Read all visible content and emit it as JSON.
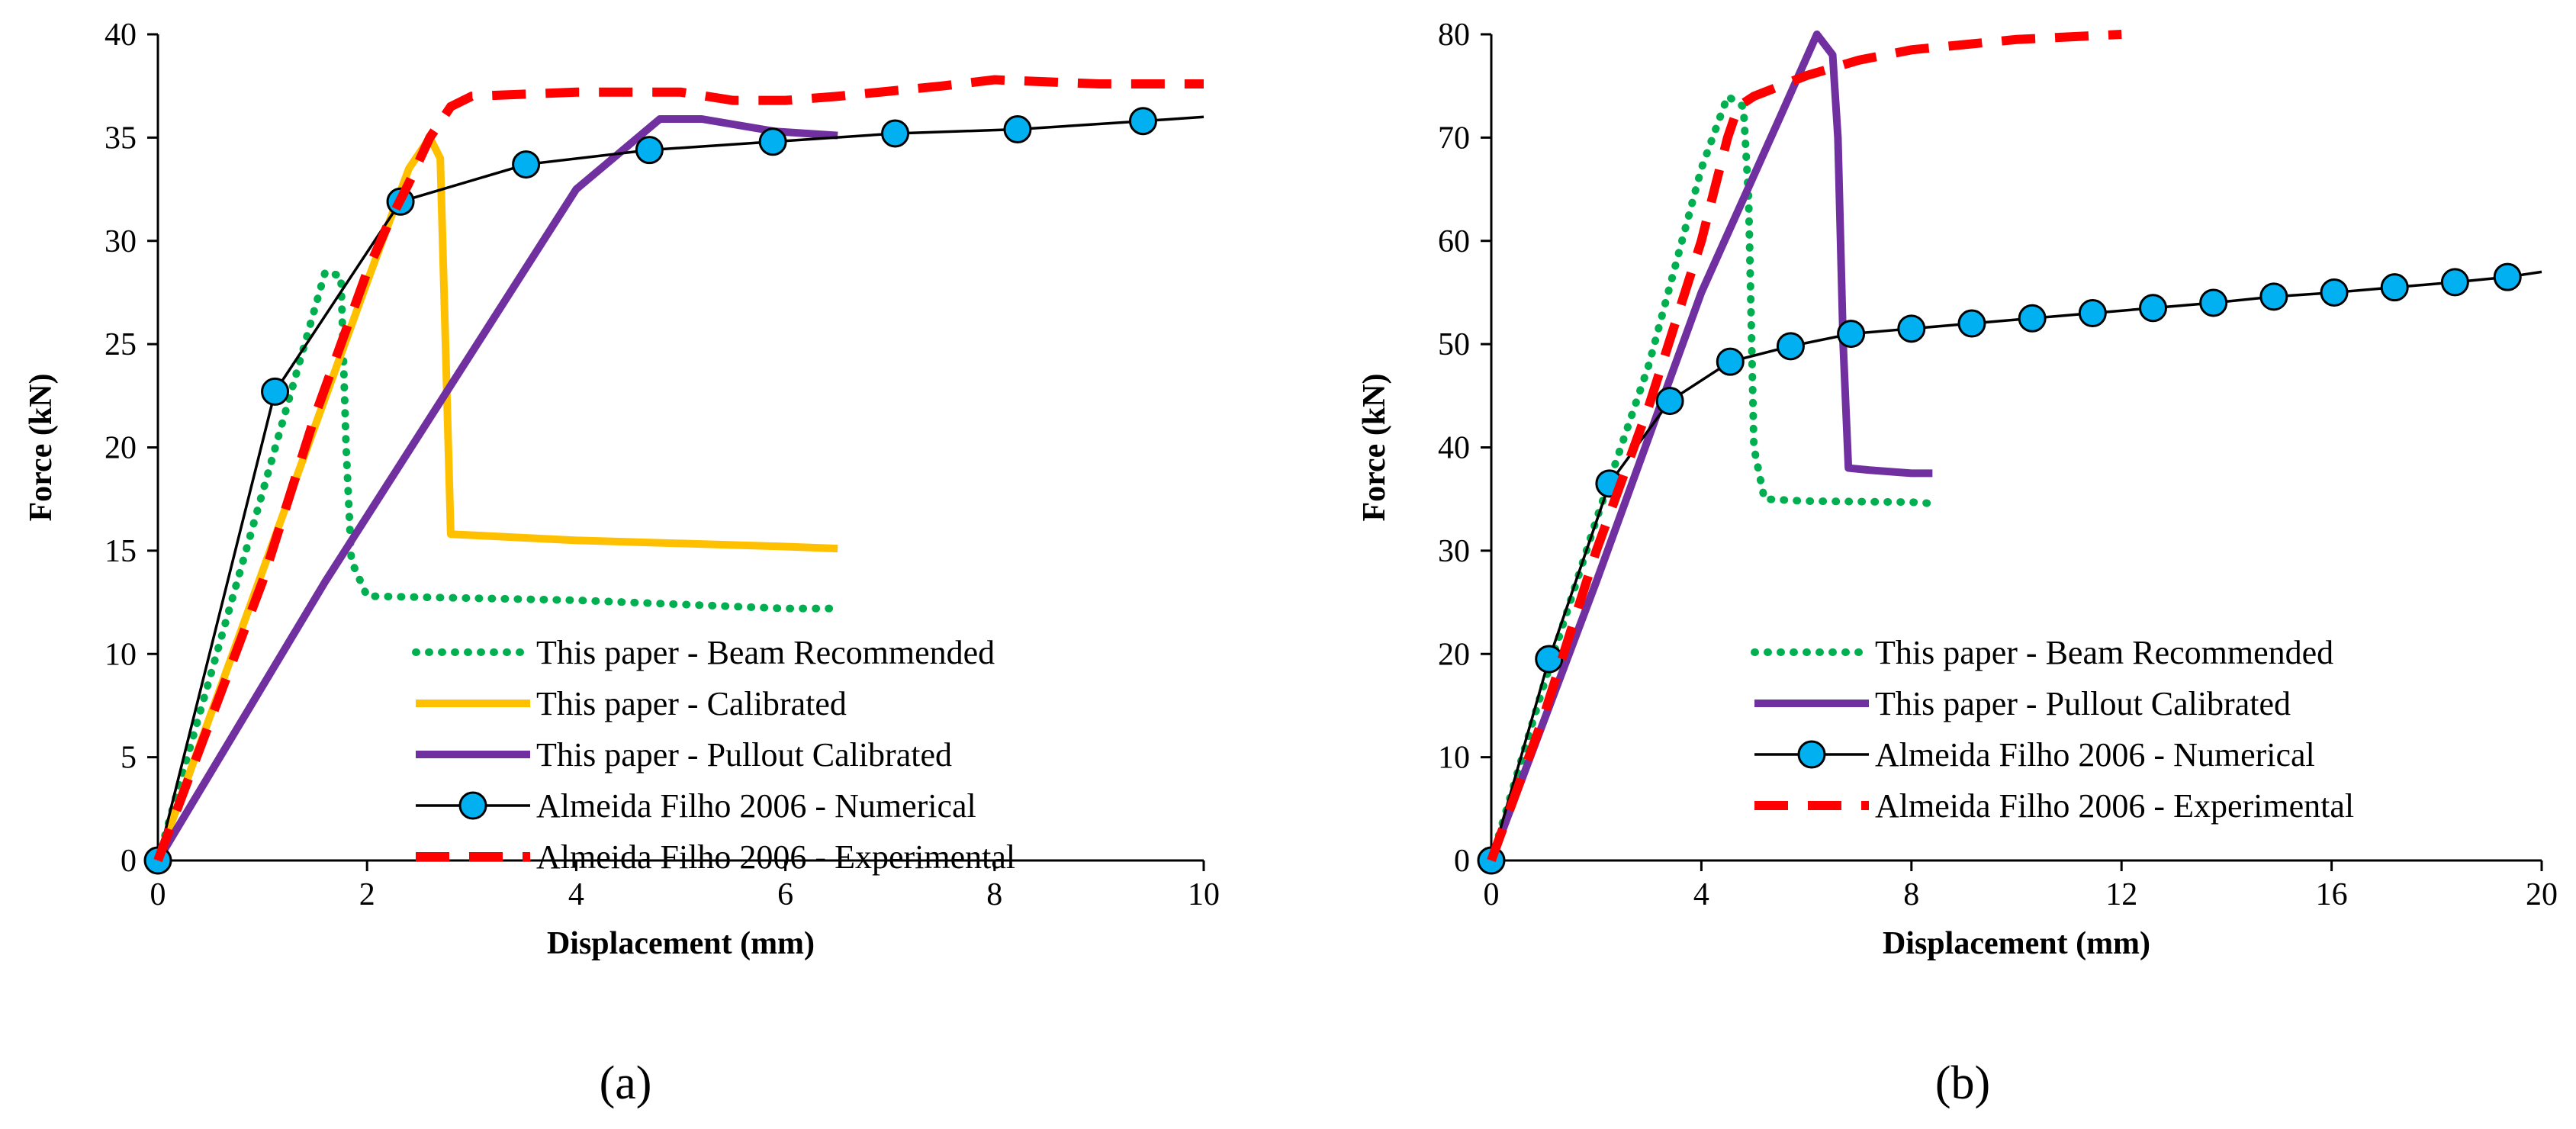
{
  "chart_data": [
    {
      "type": "line",
      "panel_label": "(a)",
      "xlabel": "Displacement (mm)",
      "ylabel": "Force (kN)",
      "xlim": [
        0,
        10
      ],
      "ylim": [
        0,
        40
      ],
      "xticks": [
        0,
        2,
        4,
        6,
        8,
        10
      ],
      "yticks": [
        0,
        5,
        10,
        15,
        20,
        25,
        30,
        35,
        40
      ],
      "grid": false,
      "legend_position": "bottom-right",
      "series": [
        {
          "name": "This paper - Beam Recommended",
          "color": "#00b050",
          "style": "dotted",
          "x": [
            0,
            1.6,
            1.75,
            1.8,
            1.85,
            2.0,
            4.0,
            6.0,
            6.5
          ],
          "y": [
            0,
            28.5,
            28.3,
            20,
            14.5,
            12.8,
            12.6,
            12.2,
            12.2
          ]
        },
        {
          "name": "This paper - Calibrated",
          "color": "#ffc000",
          "style": "solid",
          "x": [
            0,
            1.0,
            2.0,
            2.4,
            2.6,
            2.7,
            2.75,
            2.8,
            4.0,
            6.0,
            6.5
          ],
          "y": [
            0,
            14,
            28,
            33.5,
            35,
            34,
            25,
            15.8,
            15.5,
            15.2,
            15.1
          ]
        },
        {
          "name": "This paper - Pullout Calibrated",
          "color": "#7030a0",
          "style": "solid",
          "x": [
            0,
            1.6,
            4.0,
            4.8,
            5.2,
            5.9,
            6.5
          ],
          "y": [
            0,
            13.5,
            32.5,
            35.9,
            35.9,
            35.3,
            35.1
          ]
        },
        {
          "name": "Almeida Filho 2006 - Numerical",
          "color": "#000000",
          "marker_color": "#00b0f0",
          "style": "solid-marker",
          "x": [
            0,
            1.12,
            2.32,
            3.52,
            4.7,
            5.88,
            7.05,
            8.22,
            9.42,
            10.0
          ],
          "y": [
            0,
            22.7,
            31.9,
            33.7,
            34.4,
            34.8,
            35.2,
            35.4,
            35.8,
            36.0
          ]
        },
        {
          "name": "Almeida Filho 2006 - Experimental",
          "color": "#ff0000",
          "style": "dashed",
          "x": [
            0,
            1.0,
            1.5,
            2.0,
            2.2,
            2.4,
            2.6,
            2.8,
            3.0,
            4.0,
            5.0,
            5.5,
            6.0,
            6.5,
            7.5,
            8.0,
            9.0,
            10.0
          ],
          "y": [
            0,
            13.5,
            21.5,
            28.5,
            30.8,
            32.8,
            35.0,
            36.5,
            37.0,
            37.2,
            37.2,
            36.8,
            36.8,
            37.0,
            37.5,
            37.8,
            37.6,
            37.6
          ]
        }
      ]
    },
    {
      "type": "line",
      "panel_label": "(b)",
      "xlabel": "Displacement (mm)",
      "ylabel": "Force (kN)",
      "xlim": [
        0,
        20
      ],
      "ylim": [
        0,
        80
      ],
      "xticks": [
        0,
        4,
        8,
        12,
        16,
        20
      ],
      "yticks": [
        0,
        10,
        20,
        30,
        40,
        50,
        60,
        70,
        80
      ],
      "grid": false,
      "legend_position": "bottom-right",
      "series": [
        {
          "name": "This paper - Beam Recommended",
          "color": "#00b050",
          "style": "dotted",
          "x": [
            0,
            1.0,
            2.0,
            3.0,
            4.0,
            4.5,
            4.8,
            4.9,
            5.0,
            5.2,
            6.0,
            8.0,
            8.3
          ],
          "y": [
            0,
            17,
            33,
            48,
            67,
            74,
            73,
            64,
            40,
            35,
            34.8,
            34.7,
            34.6
          ]
        },
        {
          "name": "This paper - Pullout Calibrated",
          "color": "#7030a0",
          "style": "solid",
          "x": [
            0,
            2.0,
            4.0,
            5.5,
            6.2,
            6.5,
            6.6,
            6.7,
            6.8,
            7.2,
            8.0,
            8.4
          ],
          "y": [
            0,
            27,
            55,
            72,
            80,
            78,
            70,
            50,
            38,
            37.8,
            37.5,
            37.5
          ]
        },
        {
          "name": "Almeida Filho 2006 - Numerical",
          "color": "#000000",
          "marker_color": "#00b0f0",
          "style": "solid-marker",
          "x": [
            0,
            1.1,
            2.25,
            3.4,
            4.55,
            5.7,
            6.85,
            8.0,
            9.15,
            10.3,
            11.45,
            12.6,
            13.75,
            14.9,
            16.05,
            17.2,
            18.35,
            19.35,
            20.0
          ],
          "y": [
            0,
            19.5,
            36.5,
            44.5,
            48.3,
            49.8,
            51.0,
            51.5,
            52.0,
            52.5,
            53.0,
            53.5,
            54.0,
            54.6,
            55.0,
            55.5,
            56.0,
            56.5,
            57.0
          ]
        },
        {
          "name": "Almeida Filho 2006 - Experimental",
          "color": "#ff0000",
          "style": "dashed",
          "x": [
            0,
            1.0,
            2.0,
            3.0,
            3.5,
            4.0,
            4.3,
            4.5,
            4.7,
            5.0,
            6.0,
            7.0,
            8.0,
            10.0,
            12.0
          ],
          "y": [
            0,
            14,
            30,
            44,
            52,
            60,
            66,
            70,
            73,
            74,
            76,
            77.5,
            78.5,
            79.5,
            80.0
          ]
        }
      ]
    }
  ]
}
